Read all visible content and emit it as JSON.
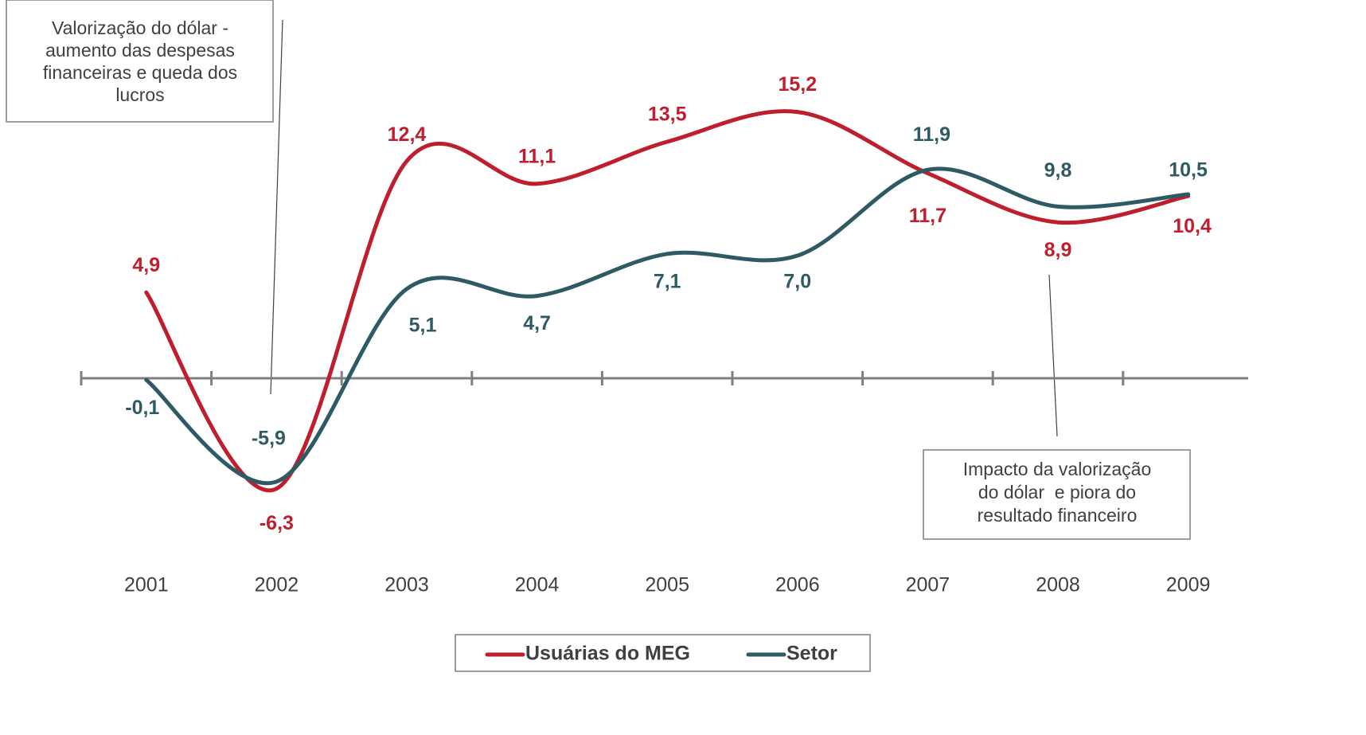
{
  "chart_data": {
    "type": "line",
    "categories": [
      "2001",
      "2002",
      "2003",
      "2004",
      "2005",
      "2006",
      "2007",
      "2008",
      "2009"
    ],
    "series": [
      {
        "name": "Usuárias do MEG",
        "color": "#be1e2d",
        "values": [
          4.9,
          -6.3,
          12.4,
          11.1,
          13.5,
          15.2,
          11.7,
          8.9,
          10.4
        ],
        "value_labels": [
          "4,9",
          "-6,3",
          "12,4",
          "11,1",
          "13,5",
          "15,2",
          "11,7",
          "8,9",
          "10,4"
        ]
      },
      {
        "name": "Setor",
        "color": "#2e5b63",
        "values": [
          -0.1,
          -5.9,
          5.1,
          4.7,
          7.1,
          7.0,
          11.9,
          9.8,
          10.5
        ],
        "value_labels": [
          "-0,1",
          "-5,9",
          "5,1",
          "4,7",
          "7,1",
          "7,0",
          "11,9",
          "9,8",
          "10,5"
        ]
      }
    ],
    "ylim": [
      -10,
      20
    ],
    "annotations": [
      {
        "lines": [
          "Valorização do dólar -",
          "aumento das despesas",
          "financeiras e queda dos",
          "lucros"
        ]
      },
      {
        "lines": [
          "Impacto da valorização",
          "do dólar  e piora do",
          "resultado financeiro"
        ]
      }
    ],
    "legend": "bottom"
  }
}
